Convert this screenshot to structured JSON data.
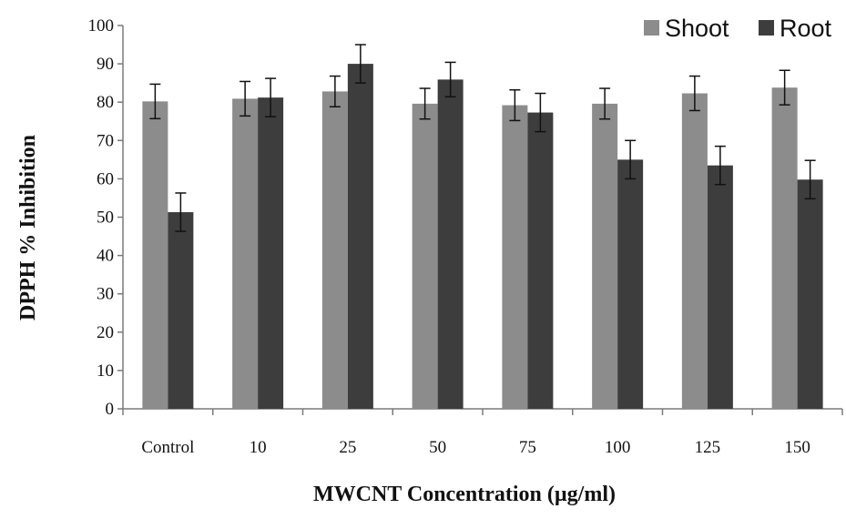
{
  "chart_data": {
    "type": "bar",
    "title": "",
    "xlabel": "MWCNT Concentration (µg/ml)",
    "ylabel": "DPPH % Inhibition",
    "categories": [
      "Control",
      "10",
      "25",
      "50",
      "75",
      "100",
      "125",
      "150"
    ],
    "ylim": [
      0,
      100
    ],
    "yticks": [
      0,
      10,
      20,
      30,
      40,
      50,
      60,
      70,
      80,
      90,
      100
    ],
    "grid": false,
    "legend_position": "top-right",
    "series": [
      {
        "name": "Shoot",
        "color": "#8c8c8c",
        "values": [
          80.2,
          80.9,
          82.8,
          79.6,
          79.2,
          79.6,
          82.3,
          83.8
        ],
        "errors": [
          4.5,
          4.5,
          4.0,
          4.0,
          4.0,
          4.0,
          4.5,
          4.5
        ]
      },
      {
        "name": "Root",
        "color": "#3d3d3d",
        "values": [
          51.3,
          81.2,
          90.0,
          85.9,
          77.3,
          65.0,
          63.5,
          59.8
        ],
        "errors": [
          5.0,
          5.0,
          5.0,
          4.5,
          5.0,
          5.0,
          5.0,
          5.0
        ]
      }
    ]
  }
}
